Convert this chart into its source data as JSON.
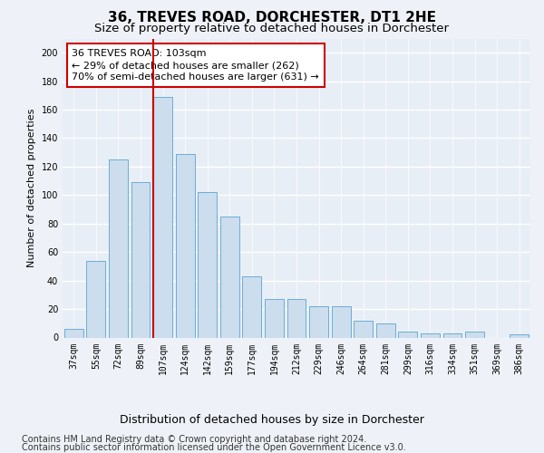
{
  "title": "36, TREVES ROAD, DORCHESTER, DT1 2HE",
  "subtitle": "Size of property relative to detached houses in Dorchester",
  "xlabel": "Distribution of detached houses by size in Dorchester",
  "ylabel": "Number of detached properties",
  "bar_values": [
    6,
    54,
    125,
    109,
    169,
    129,
    102,
    85,
    43,
    27,
    27,
    22,
    22,
    12,
    10,
    4,
    3,
    3,
    4,
    0,
    2
  ],
  "categories": [
    "37sqm",
    "55sqm",
    "72sqm",
    "89sqm",
    "107sqm",
    "124sqm",
    "142sqm",
    "159sqm",
    "177sqm",
    "194sqm",
    "212sqm",
    "229sqm",
    "246sqm",
    "264sqm",
    "281sqm",
    "299sqm",
    "316sqm",
    "334sqm",
    "351sqm",
    "369sqm",
    "386sqm"
  ],
  "bar_color": "#ccdded",
  "bar_edge_color": "#6aaed6",
  "marker_index": 4,
  "marker_color": "#cc0000",
  "annotation_line1": "36 TREVES ROAD: 103sqm",
  "annotation_line2": "← 29% of detached houses are smaller (262)",
  "annotation_line3": "70% of semi-detached houses are larger (631) →",
  "annotation_box_color": "#ffffff",
  "annotation_border_color": "#cc0000",
  "ylim": [
    0,
    210
  ],
  "yticks": [
    0,
    20,
    40,
    60,
    80,
    100,
    120,
    140,
    160,
    180,
    200
  ],
  "footer_line1": "Contains HM Land Registry data © Crown copyright and database right 2024.",
  "footer_line2": "Contains public sector information licensed under the Open Government Licence v3.0.",
  "bg_color": "#eef2f8",
  "plot_bg_color": "#e8eef6",
  "grid_color": "#ffffff",
  "title_fontsize": 11,
  "subtitle_fontsize": 9.5,
  "ylabel_fontsize": 8,
  "xlabel_fontsize": 9,
  "tick_fontsize": 7,
  "annotation_fontsize": 8,
  "footer_fontsize": 7
}
